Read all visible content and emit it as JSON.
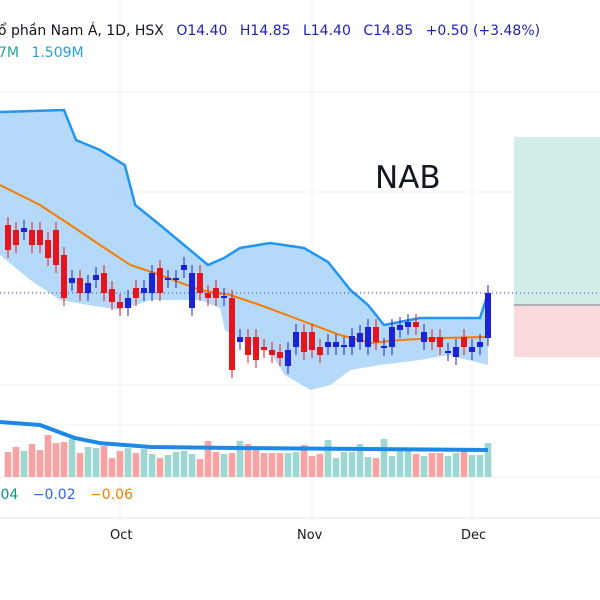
{
  "header": {
    "title": "ổ phần Nam Á, 1D, HSX",
    "open": "O14.40",
    "high": "H14.85",
    "low": "L14.40",
    "close": "C14.85",
    "change": "+0.50 (+3.48%)",
    "volume_prefix": "7M",
    "volume_ma": "1.509M"
  },
  "indicator": {
    "values": [
      ".04",
      "−0.02",
      "−0.06"
    ],
    "colors": [
      "#089981",
      "#2962ff",
      "#f57c00"
    ]
  },
  "symbol_watermark": "NAB",
  "chart_data": {
    "type": "candlestick",
    "x_ticks": [
      {
        "label": "Oct",
        "index": 14
      },
      {
        "label": "Nov",
        "index": 38
      },
      {
        "label": "Dec",
        "index": 58
      }
    ],
    "last_price": 14.85,
    "colors": {
      "up": "#1e22d6",
      "down": "#e8141b",
      "band_fill": "#a8d2f7",
      "band_line": "#2196f3",
      "ma": "#f57c00",
      "vol_up": "#9ed6d1",
      "vol_down": "#f7a3a3",
      "vol_ma": "#1e88e5",
      "target": "#d1ede7",
      "stop": "#fbdadd"
    },
    "candles_oc": [
      [
        15.53,
        15.28
      ],
      [
        15.48,
        15.33
      ],
      [
        15.46,
        15.5
      ],
      [
        15.48,
        15.33
      ],
      [
        15.48,
        15.33
      ],
      [
        15.38,
        15.2
      ],
      [
        15.48,
        15.13
      ],
      [
        15.23,
        14.8
      ],
      [
        14.95,
        15.0
      ],
      [
        15.0,
        14.85
      ],
      [
        14.85,
        14.95
      ],
      [
        14.98,
        15.03
      ],
      [
        15.05,
        14.85
      ],
      [
        14.89,
        14.76
      ],
      [
        14.76,
        14.7
      ],
      [
        14.7,
        14.8
      ],
      [
        14.9,
        14.8
      ],
      [
        14.85,
        14.9
      ],
      [
        14.85,
        15.05
      ],
      [
        15.1,
        14.85
      ],
      [
        14.98,
        15.0
      ],
      [
        14.98,
        15.0
      ],
      [
        15.08,
        15.13
      ],
      [
        14.7,
        15.05
      ],
      [
        15.05,
        14.85
      ],
      [
        14.85,
        14.8
      ],
      [
        14.9,
        14.8
      ],
      [
        14.8,
        14.82
      ],
      [
        14.8,
        14.08
      ],
      [
        14.36,
        14.41
      ],
      [
        14.41,
        14.23
      ],
      [
        14.41,
        14.18
      ],
      [
        14.31,
        14.28
      ],
      [
        14.28,
        14.23
      ],
      [
        14.26,
        14.2
      ],
      [
        14.12,
        14.28
      ],
      [
        14.31,
        14.46
      ],
      [
        14.46,
        14.26
      ],
      [
        14.46,
        14.28
      ],
      [
        14.31,
        14.23
      ],
      [
        14.31,
        14.36
      ],
      [
        14.31,
        14.36
      ],
      [
        14.31,
        14.33
      ],
      [
        14.31,
        14.42
      ],
      [
        14.36,
        14.45
      ],
      [
        14.31,
        14.51
      ],
      [
        14.51,
        14.36
      ],
      [
        14.3,
        14.32
      ],
      [
        14.31,
        14.51
      ],
      [
        14.48,
        14.53
      ],
      [
        14.51,
        14.56
      ],
      [
        14.56,
        14.51
      ],
      [
        14.36,
        14.46
      ],
      [
        14.41,
        14.36
      ],
      [
        14.41,
        14.31
      ],
      [
        14.25,
        14.27
      ],
      [
        14.21,
        14.31
      ],
      [
        14.41,
        14.31
      ],
      [
        14.26,
        14.31
      ],
      [
        14.31,
        14.36
      ],
      [
        14.4,
        14.85
      ]
    ],
    "bb_upper": [
      [
        -1,
        16.66
      ],
      [
        7,
        16.68
      ],
      [
        8.5,
        16.38
      ],
      [
        11.5,
        16.28
      ],
      [
        14.6,
        16.13
      ],
      [
        15.9,
        15.73
      ],
      [
        19,
        15.53
      ],
      [
        22,
        15.33
      ],
      [
        25,
        15.13
      ],
      [
        27,
        15.2
      ],
      [
        29,
        15.3
      ],
      [
        32.8,
        15.35
      ],
      [
        37,
        15.3
      ],
      [
        40,
        15.16
      ],
      [
        42.8,
        14.88
      ],
      [
        45,
        14.73
      ],
      [
        47,
        14.53
      ],
      [
        51.5,
        14.6
      ],
      [
        59,
        14.6
      ],
      [
        60,
        14.85
      ]
    ],
    "bb_lower": [
      [
        -1,
        15.23
      ],
      [
        2.8,
        14.98
      ],
      [
        6.5,
        14.78
      ],
      [
        10,
        14.73
      ],
      [
        14,
        14.68
      ],
      [
        17.8,
        14.78
      ],
      [
        24,
        14.78
      ],
      [
        26.5,
        14.7
      ],
      [
        27.1,
        14.48
      ],
      [
        30.3,
        14.33
      ],
      [
        32.8,
        14.26
      ],
      [
        34.6,
        14.03
      ],
      [
        37.8,
        13.88
      ],
      [
        40.3,
        13.93
      ],
      [
        42.8,
        14.08
      ],
      [
        46.5,
        14.13
      ],
      [
        51.5,
        14.18
      ],
      [
        55,
        14.23
      ],
      [
        60,
        14.13
      ]
    ],
    "ma": [
      [
        -1,
        15.93
      ],
      [
        4,
        15.73
      ],
      [
        7.8,
        15.53
      ],
      [
        11.5,
        15.33
      ],
      [
        15.3,
        15.13
      ],
      [
        19,
        15.03
      ],
      [
        24,
        14.88
      ],
      [
        27.8,
        14.83
      ],
      [
        31.5,
        14.73
      ],
      [
        36.5,
        14.58
      ],
      [
        41.5,
        14.43
      ],
      [
        45.3,
        14.35
      ],
      [
        49,
        14.38
      ],
      [
        54,
        14.4
      ],
      [
        60,
        14.41
      ]
    ],
    "volume_m": [
      1.4,
      1.68,
      1.46,
      1.85,
      1.51,
      2.35,
      1.9,
      1.96,
      2.13,
      1.34,
      1.68,
      1.62,
      1.74,
      1.06,
      1.46,
      1.62,
      1.34,
      1.57,
      1.29,
      1.06,
      1.23,
      1.4,
      1.46,
      1.29,
      1.01,
      2.02,
      1.4,
      1.29,
      1.34,
      2.02,
      1.85,
      1.68,
      1.34,
      1.34,
      1.34,
      1.34,
      1.4,
      1.79,
      1.18,
      1.29,
      2.07,
      1.06,
      1.4,
      1.4,
      1.85,
      1.12,
      1.06,
      2.13,
      1.18,
      1.51,
      1.46,
      1.29,
      1.18,
      1.34,
      1.34,
      1.18,
      1.34,
      1.46,
      1.23,
      1.23,
      1.9
    ],
    "volume_ma_m": [
      [
        -1,
        3.08
      ],
      [
        4,
        2.91
      ],
      [
        8.4,
        2.18
      ],
      [
        11.5,
        1.9
      ],
      [
        17.8,
        1.68
      ],
      [
        30,
        1.62
      ],
      [
        60,
        1.51
      ]
    ]
  }
}
